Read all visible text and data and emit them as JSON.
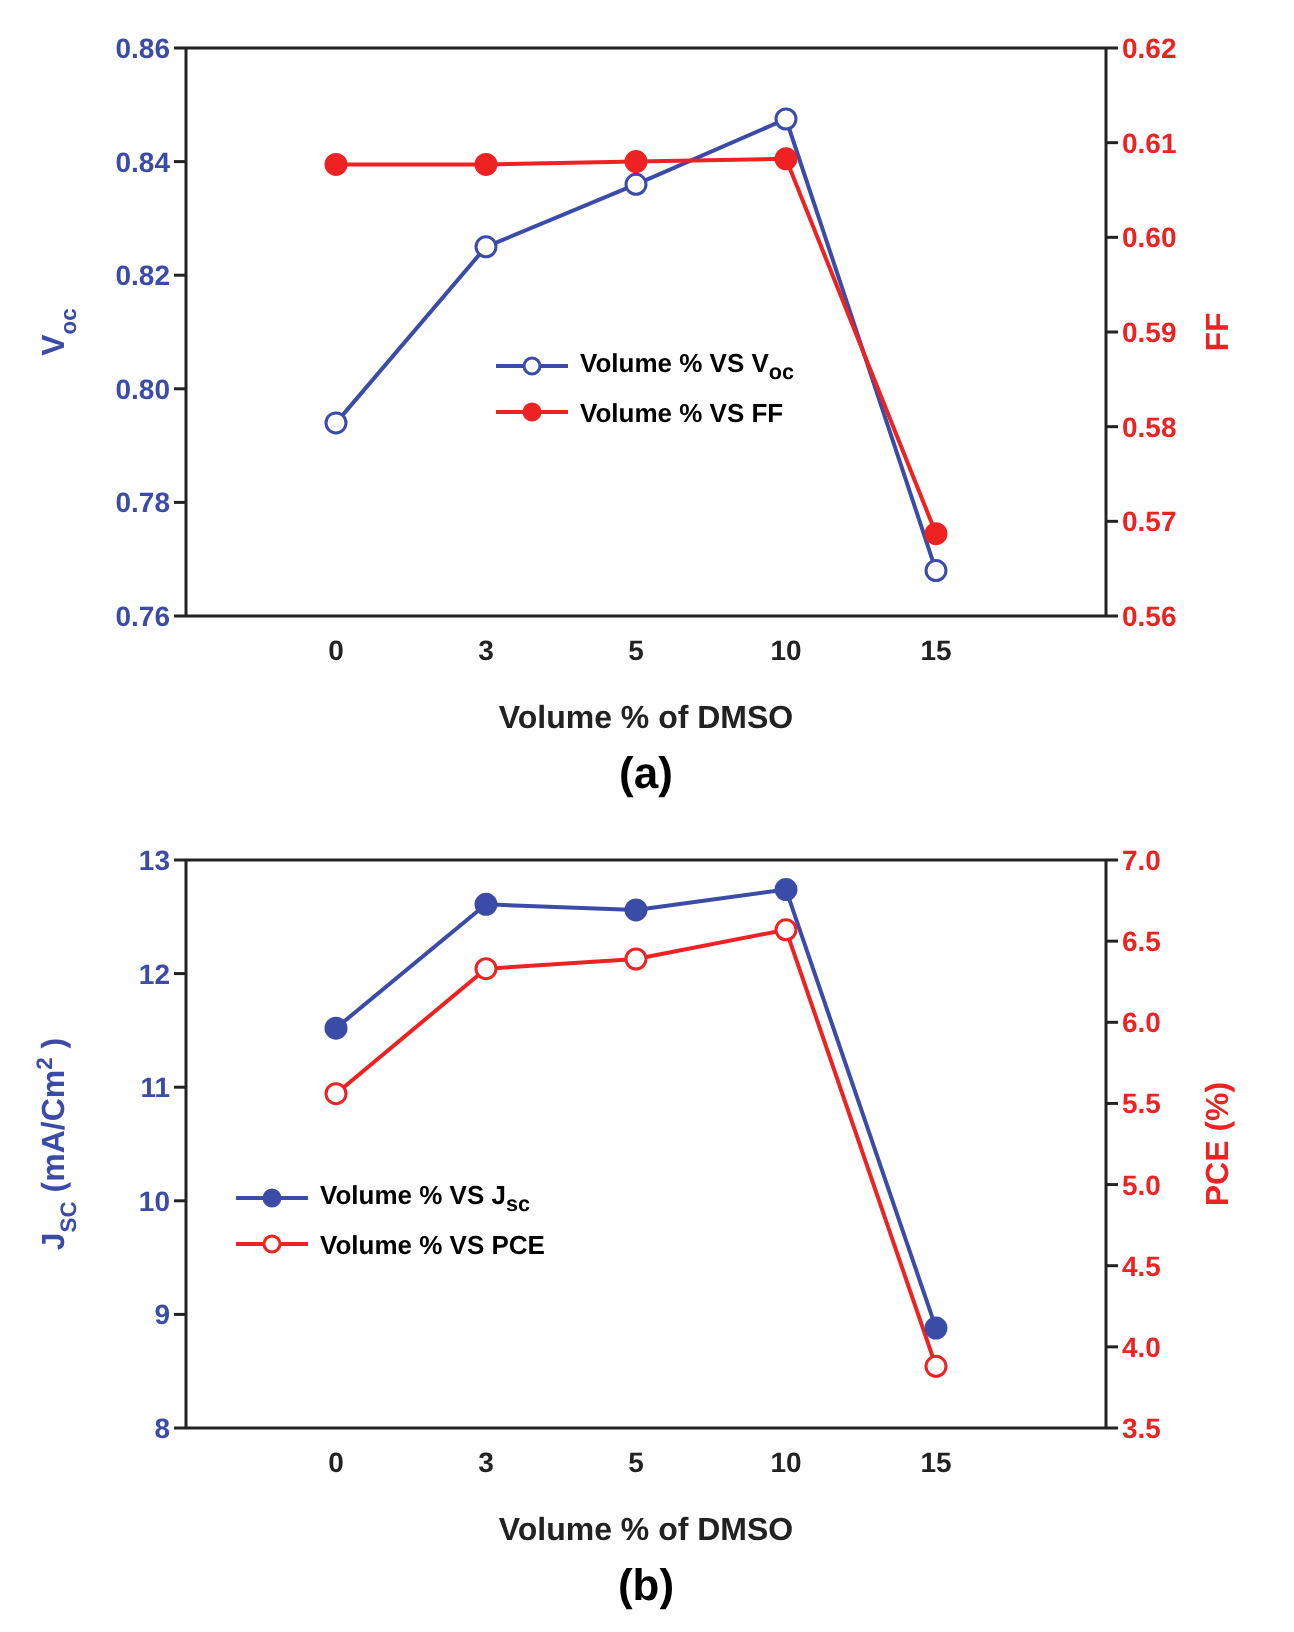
{
  "chart_data": [
    {
      "type": "line",
      "categories": [
        "0",
        "3",
        "5",
        "10",
        "15"
      ],
      "xlabel": "Volume % of DMSO",
      "ylabel": "V$_{oc}$",
      "y2label": "FF",
      "ylim": [
        0.76,
        0.86
      ],
      "yticks": [
        {
          "value": 0.76,
          "label": "0.76"
        },
        {
          "value": 0.78,
          "label": "0.78"
        },
        {
          "value": 0.8,
          "label": "0.80"
        },
        {
          "value": 0.82,
          "label": "0.82"
        },
        {
          "value": 0.84,
          "label": "0.84"
        },
        {
          "value": 0.86,
          "label": "0.86"
        }
      ],
      "y2lim": [
        0.56,
        0.62
      ],
      "y2ticks": [
        {
          "value": 0.56,
          "label": "0.56"
        },
        0.57,
        0.58,
        0.59,
        {
          "value": 0.6,
          "label": "0.60"
        },
        0.61,
        0.62
      ],
      "legend": "center",
      "marker": "circle",
      "line_style": "solid",
      "annotations": [
        "(a)"
      ],
      "series": [
        {
          "name": "Volume % VS V$_{oc}$",
          "color": "#3b4ba8",
          "values": [
            0.794,
            0.825,
            0.836,
            0.8475,
            0.768
          ]
        },
        {
          "name": "Volume % VS FF",
          "color": "#ee2222",
          "axis": "y2",
          "values": [
            0.6077,
            0.6077,
            0.608,
            0.6083,
            0.5687
          ]
        }
      ]
    },
    {
      "type": "line",
      "categories": [
        "0",
        "3",
        "5",
        "10",
        "15"
      ],
      "xlabel": "Volume % of DMSO",
      "ylabel": "J$_{SC}$ (mA/Cm$^{2}$)",
      "y2label": "PCE (%)",
      "ylim": [
        8,
        13
      ],
      "yticks": [
        8,
        9,
        10,
        11,
        12,
        13
      ],
      "y2lim": [
        3.5,
        7
      ],
      "y2ticks": [
        3.5,
        {
          "value": 4,
          "label": "4.0"
        },
        4.5,
        {
          "value": 5,
          "label": "5.0"
        },
        5.5,
        {
          "value": 6,
          "label": "6.0"
        },
        6.5,
        {
          "value": 7,
          "label": "7.0"
        }
      ],
      "legend": "center left",
      "marker": "circle",
      "line_style": "solid",
      "annotations": [
        "(b)"
      ],
      "series": [
        {
          "name": "Volume % VS J$_{sc}$",
          "color": "#3b4ba8",
          "values": [
            11.52,
            12.61,
            12.56,
            12.74,
            8.88
          ]
        },
        {
          "name": "Volume % VS PCE",
          "color": "#ee2222",
          "axis": "y2",
          "values": [
            5.56,
            6.33,
            6.39,
            6.57,
            3.88
          ]
        }
      ]
    }
  ]
}
